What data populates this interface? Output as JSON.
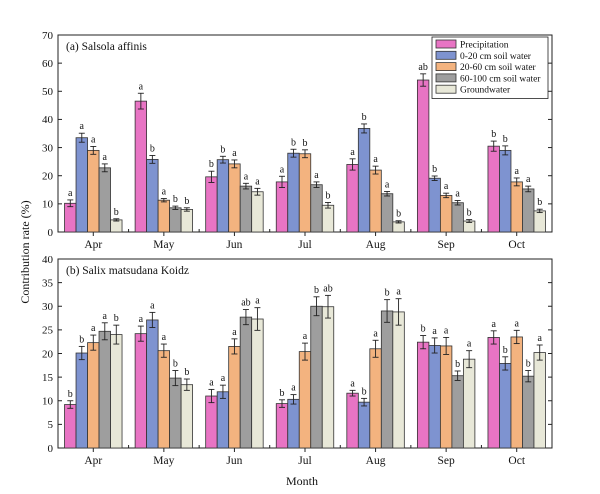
{
  "shared": {
    "ylabel": "Contribution rate (%)",
    "xlabel": "Month",
    "categories": [
      "Apr",
      "May",
      "Jun",
      "Jul",
      "Aug",
      "Sep",
      "Oct"
    ]
  },
  "legend": [
    {
      "name": "Precipitation",
      "color": "#e874c4"
    },
    {
      "name": "0-20 cm soil water",
      "color": "#7e93d0"
    },
    {
      "name": "20-60 cm soil water",
      "color": "#f3b37f"
    },
    {
      "name": "60-100 cm soil water",
      "color": "#9e9e9e"
    },
    {
      "name": "Groundwater",
      "color": "#e8e8d8"
    }
  ],
  "chart_data": [
    {
      "type": "bar",
      "title": "(a) Salsola affinis",
      "categories": [
        "Apr",
        "May",
        "Jun",
        "Jul",
        "Aug",
        "Sep",
        "Oct"
      ],
      "ylim": [
        0,
        70
      ],
      "yticks": [
        0,
        10,
        20,
        30,
        40,
        50,
        60,
        70
      ],
      "series": [
        {
          "name": "Precipitation",
          "values": [
            10.2,
            46.5,
            19.6,
            17.8,
            24.0,
            54.0,
            30.5
          ],
          "errors": [
            1.2,
            2.8,
            2.0,
            2.0,
            2.0,
            2.2,
            1.8
          ],
          "sig": [
            "a",
            "a",
            "b",
            "a",
            "a",
            "ab",
            "b"
          ]
        },
        {
          "name": "0-20 cm soil water",
          "values": [
            33.5,
            25.8,
            25.7,
            28.0,
            36.8,
            19.1,
            29.0
          ],
          "errors": [
            1.6,
            1.4,
            1.2,
            1.4,
            1.6,
            0.8,
            1.6
          ],
          "sig": [
            "a",
            "b",
            "b",
            "b",
            "b",
            "b",
            "b"
          ]
        },
        {
          "name": "20-60 cm soil water",
          "values": [
            29.0,
            11.3,
            24.2,
            27.8,
            22.0,
            13.0,
            17.8
          ],
          "errors": [
            1.4,
            0.6,
            1.4,
            1.4,
            1.4,
            0.8,
            1.4
          ],
          "sig": [
            "a",
            "a",
            "a",
            "b",
            "a",
            "a",
            "a"
          ]
        },
        {
          "name": "60-100 cm soil water",
          "values": [
            22.8,
            8.6,
            16.3,
            16.8,
            13.6,
            10.4,
            15.3
          ],
          "errors": [
            1.4,
            0.6,
            1.0,
            1.0,
            0.8,
            0.8,
            1.0
          ],
          "sig": [
            "a",
            "b",
            "a",
            "a",
            "a",
            "a",
            "a"
          ]
        },
        {
          "name": "Groundwater",
          "values": [
            4.3,
            8.0,
            14.3,
            9.5,
            3.6,
            3.9,
            7.5
          ],
          "errors": [
            0.4,
            0.6,
            1.2,
            1.0,
            0.4,
            0.5,
            0.6
          ],
          "sig": [
            "b",
            "b",
            "a",
            "b",
            "b",
            "b",
            "b"
          ]
        }
      ]
    },
    {
      "type": "bar",
      "title": "(b) Salix matsudana Koidz",
      "categories": [
        "Apr",
        "May",
        "Jun",
        "Jul",
        "Aug",
        "Sep",
        "Oct"
      ],
      "ylim": [
        0,
        40
      ],
      "yticks": [
        0,
        5,
        10,
        15,
        20,
        25,
        30,
        35,
        40
      ],
      "series": [
        {
          "name": "Precipitation",
          "values": [
            9.2,
            24.2,
            11.0,
            9.4,
            11.6,
            22.4,
            23.4
          ],
          "errors": [
            0.8,
            1.6,
            1.4,
            0.8,
            0.6,
            1.4,
            1.4
          ],
          "sig": [
            "b",
            "a",
            "a",
            "b",
            "a",
            "b",
            "a"
          ]
        },
        {
          "name": "0-20 cm soil water",
          "values": [
            20.1,
            27.1,
            11.9,
            10.3,
            9.7,
            21.7,
            17.9
          ],
          "errors": [
            1.4,
            1.6,
            1.4,
            1.0,
            0.8,
            1.6,
            1.4
          ],
          "sig": [
            "b",
            "a",
            "a",
            "a",
            "b",
            "a",
            "b"
          ]
        },
        {
          "name": "20-60 cm soil water",
          "values": [
            22.3,
            20.6,
            21.5,
            20.4,
            21.0,
            21.6,
            23.5
          ],
          "errors": [
            1.6,
            1.4,
            1.6,
            1.8,
            1.8,
            1.8,
            1.4
          ],
          "sig": [
            "a",
            "a",
            "a",
            "a",
            "a",
            "a",
            "a"
          ]
        },
        {
          "name": "60-100 cm soil water",
          "values": [
            24.7,
            14.8,
            27.7,
            30.0,
            29.0,
            15.3,
            15.2
          ],
          "errors": [
            1.8,
            1.6,
            1.6,
            2.0,
            2.4,
            1.0,
            1.2
          ],
          "sig": [
            "a",
            "b",
            "ab",
            "b",
            "b",
            "b",
            "b"
          ]
        },
        {
          "name": "Groundwater",
          "values": [
            24.0,
            13.4,
            27.3,
            29.9,
            28.8,
            18.8,
            20.2
          ],
          "errors": [
            2.0,
            1.2,
            2.4,
            2.4,
            2.8,
            1.8,
            1.6
          ],
          "sig": [
            "b",
            "b",
            "a",
            "ab",
            "a",
            "a",
            "a"
          ]
        }
      ]
    }
  ]
}
